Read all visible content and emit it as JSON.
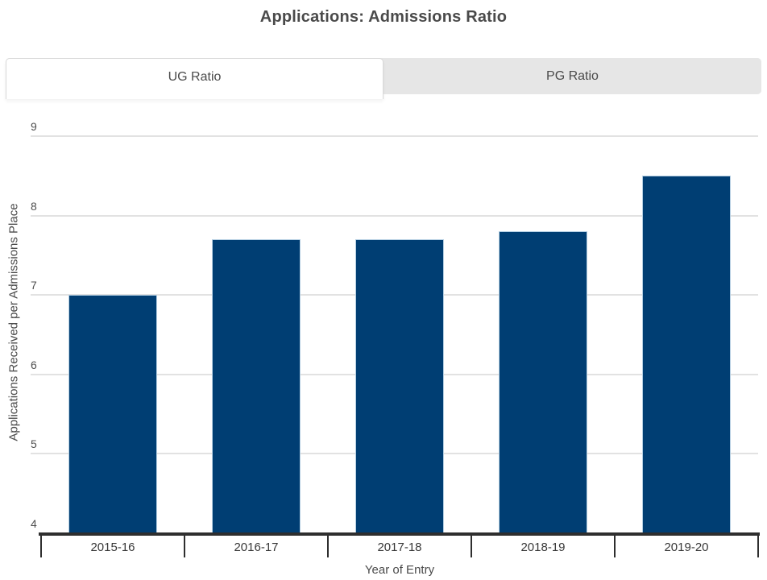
{
  "title": "Applications: Admissions Ratio",
  "tabs": [
    {
      "label": "UG Ratio",
      "active": true
    },
    {
      "label": "PG Ratio",
      "active": false
    }
  ],
  "chart_data": {
    "type": "bar",
    "categories": [
      "2015-16",
      "2016-17",
      "2017-18",
      "2018-19",
      "2019-20"
    ],
    "values": [
      7.0,
      7.7,
      7.7,
      7.8,
      8.5
    ],
    "title": "Applications: Admissions Ratio",
    "xlabel": "Year of Entry",
    "ylabel": "Applications Received per Admissions Place",
    "ylim": [
      4,
      9
    ],
    "ytick_step": 1,
    "grid": true,
    "legend": false,
    "bar_color": "#003e73",
    "gridline_color": "#e2e2e2",
    "axis_color": "#2e2e2e"
  }
}
